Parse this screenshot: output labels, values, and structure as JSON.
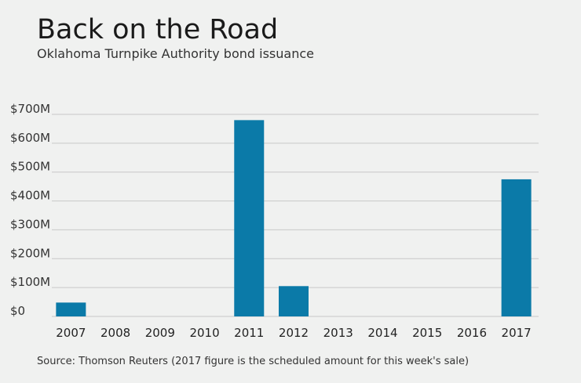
{
  "title": "Back on the Road",
  "subtitle": "Oklahoma Turnpike Authority bond issuance",
  "source": "Source: Thomson Reuters (2017 figure is the scheduled amount for this week's sale)",
  "colors": {
    "bar": "#0b7aa8",
    "background": "#f0f1f0",
    "grid": "#c8c8c8"
  },
  "chart_data": {
    "type": "bar",
    "title": "Back on the Road",
    "subtitle": "Oklahoma Turnpike Authority bond issuance",
    "categories": [
      "2007",
      "2008",
      "2009",
      "2010",
      "2011",
      "2012",
      "2013",
      "2014",
      "2015",
      "2016",
      "2017"
    ],
    "values": [
      48,
      0,
      0,
      0,
      680,
      105,
      0,
      0,
      0,
      0,
      475
    ],
    "unit": "$M",
    "ylim": [
      0,
      700
    ],
    "yticks": [
      0,
      100,
      200,
      300,
      400,
      500,
      600,
      700
    ],
    "ytick_labels": [
      "$0",
      "$100M",
      "$200M",
      "$300M",
      "$400M",
      "$500M",
      "$600M",
      "$700M"
    ],
    "grid": true,
    "legend": "none"
  }
}
